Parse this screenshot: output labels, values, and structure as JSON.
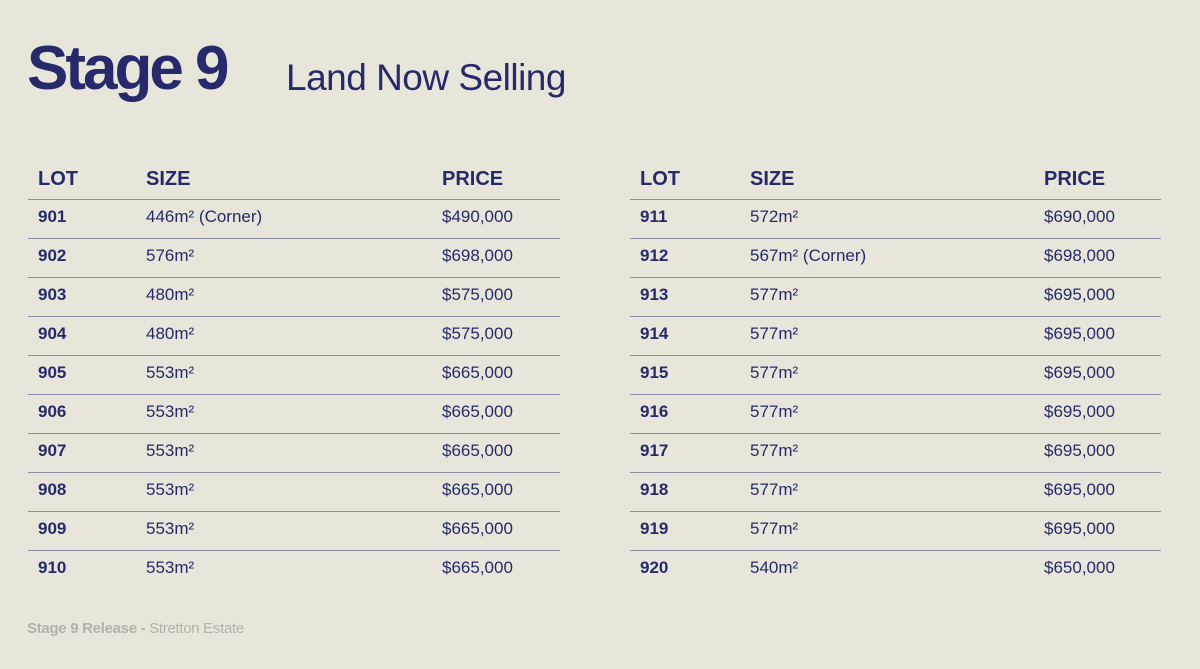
{
  "header": {
    "title": "Stage 9",
    "subtitle": "Land Now Selling"
  },
  "columns": {
    "lot": "LOT",
    "size": "SIZE",
    "price": "PRICE"
  },
  "tables": [
    {
      "rows": [
        {
          "lot": "901",
          "size": "446m² (Corner)",
          "price": "$490,000"
        },
        {
          "lot": "902",
          "size": "576m²",
          "price": "$698,000"
        },
        {
          "lot": "903",
          "size": "480m²",
          "price": "$575,000"
        },
        {
          "lot": "904",
          "size": "480m²",
          "price": "$575,000"
        },
        {
          "lot": "905",
          "size": "553m²",
          "price": "$665,000"
        },
        {
          "lot": "906",
          "size": "553m²",
          "price": "$665,000"
        },
        {
          "lot": "907",
          "size": "553m²",
          "price": "$665,000"
        },
        {
          "lot": "908",
          "size": "553m²",
          "price": "$665,000"
        },
        {
          "lot": "909",
          "size": "553m²",
          "price": "$665,000"
        },
        {
          "lot": "910",
          "size": "553m²",
          "price": "$665,000"
        }
      ]
    },
    {
      "rows": [
        {
          "lot": "911",
          "size": "572m²",
          "price": "$690,000"
        },
        {
          "lot": "912",
          "size": "567m² (Corner)",
          "price": "$698,000"
        },
        {
          "lot": "913",
          "size": "577m²",
          "price": "$695,000"
        },
        {
          "lot": "914",
          "size": "577m²",
          "price": "$695,000"
        },
        {
          "lot": "915",
          "size": "577m²",
          "price": "$695,000"
        },
        {
          "lot": "916",
          "size": "577m²",
          "price": "$695,000"
        },
        {
          "lot": "917",
          "size": "577m²",
          "price": "$695,000"
        },
        {
          "lot": "918",
          "size": "577m²",
          "price": "$695,000"
        },
        {
          "lot": "919",
          "size": "577m²",
          "price": "$695,000"
        },
        {
          "lot": "920",
          "size": "540m²",
          "price": "$650,000"
        }
      ]
    }
  ],
  "footer": {
    "bold": "Stage 9 Release -",
    "text": " Stretton Estate"
  },
  "colors": {
    "navy": "#262a6b",
    "background": "#e8e6da",
    "rule": "#8e8fa6",
    "footer": "#b3b2aa"
  }
}
